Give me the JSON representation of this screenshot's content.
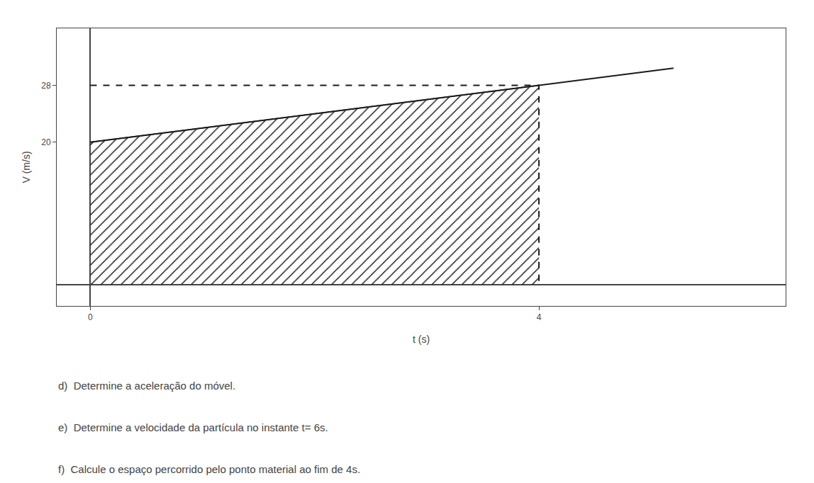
{
  "chart_data": {
    "type": "line",
    "xlabel": "t (s)",
    "ylabel": "V (m/s)",
    "series": [
      {
        "type": "area",
        "x": [
          0,
          4
        ],
        "values": [
          20,
          28
        ],
        "color": "#1a1a1a"
      },
      {
        "type": "line",
        "x": [
          0,
          4,
          4
        ],
        "values": [
          28,
          28,
          0
        ],
        "color": "#1a1a1a",
        "line_style": "dashed"
      },
      {
        "type": "line",
        "x": [
          0,
          5.2
        ],
        "values": [
          20,
          30.4
        ],
        "color": "#1a1a1a",
        "line_style": "solid"
      }
    ],
    "xlim": [
      -0.3,
      6.2
    ],
    "ylim": [
      -3,
      36
    ],
    "xticks": [
      0,
      4
    ],
    "yticks": [
      20,
      28
    ],
    "grid": false,
    "annotations": [
      "d)  Determine a aceleração do móvel.",
      "e)  Determine a velocidade da partícula no instante t= 6s.",
      "f)  Calcule o espaço percorrido pelo ponto material ao fim de 4s."
    ]
  }
}
